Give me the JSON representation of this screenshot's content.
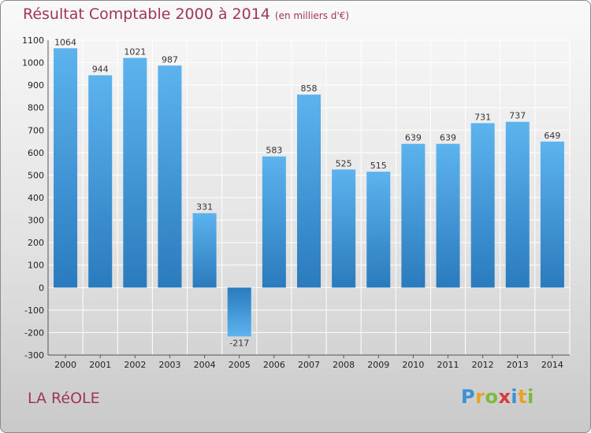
{
  "page": {
    "title": "Résultat Comptable 2000 à 2014",
    "unit": "(en milliers d'€)",
    "town": "LA RéOLE",
    "logo": "Proxiti"
  },
  "chart_data": {
    "type": "bar",
    "title": "Résultat Comptable 2000 à 2014 (en milliers d'€)",
    "categories": [
      "2000",
      "2001",
      "2002",
      "2003",
      "2004",
      "2005",
      "2006",
      "2007",
      "2008",
      "2009",
      "2010",
      "2011",
      "2012",
      "2013",
      "2014"
    ],
    "values": [
      1064,
      944,
      1021,
      987,
      331,
      -217,
      583,
      858,
      525,
      515,
      639,
      639,
      731,
      737,
      649
    ],
    "ylim": [
      -300,
      1100
    ],
    "yticks": [
      -300,
      -200,
      -100,
      0,
      100,
      200,
      300,
      400,
      500,
      600,
      700,
      800,
      900,
      1000,
      1100
    ],
    "grid": true,
    "bar_color": "#4b9fe1"
  }
}
